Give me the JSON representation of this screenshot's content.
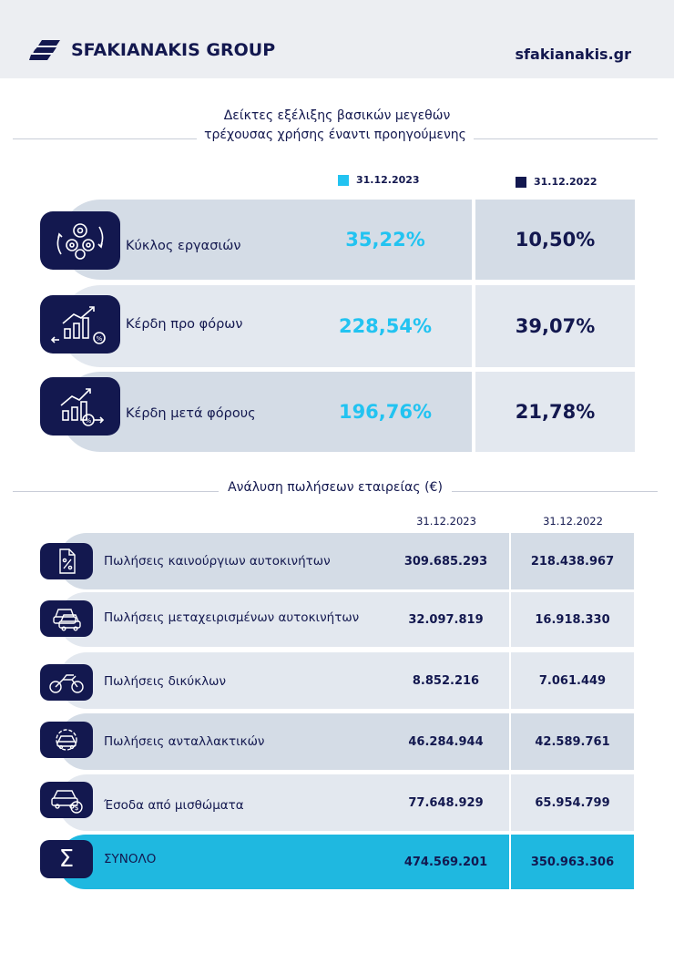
{
  "header": {
    "brand": "SFAKIANAKIS GROUP",
    "website": "sfakianakis.gr"
  },
  "colors": {
    "accent_2023": "#22c3f1",
    "navy_2022": "#13184f",
    "total_row": "#1fb8e0"
  },
  "section1": {
    "title_line1": "Δείκτες εξέλιξης βασικών μεγεθών",
    "title_line2": "τρέχουσας χρήσης έναντι προηγούμενης",
    "legend": {
      "current": "31.12.2023",
      "previous": "31.12.2022"
    },
    "rows": [
      {
        "label": "Κύκλος εργασιών",
        "icon": "gears-cycle-icon",
        "current": "35,22%",
        "previous": "10,50%"
      },
      {
        "label": "Κέρδη προ φόρων",
        "icon": "growth-chart-icon",
        "current": "228,54%",
        "previous": "39,07%"
      },
      {
        "label": "Κέρδη μετά φόρους",
        "icon": "growth-chart-percent-icon",
        "current": "196,76%",
        "previous": "21,78%"
      }
    ]
  },
  "section2": {
    "title": "Ανάλυση πωλήσεων εταιρείας (€)",
    "columns": {
      "current": "31.12.2023",
      "previous": "31.12.2022"
    },
    "rows": [
      {
        "label": "Πωλήσεις καινούργιων αυτοκινήτων",
        "icon": "document-percent-icon",
        "current": "309.685.293",
        "previous": "218.438.967"
      },
      {
        "label": "Πωλήσεις μεταχειρισμένων αυτοκινήτων",
        "icon": "two-cars-icon",
        "current": "32.097.819",
        "previous": "16.918.330"
      },
      {
        "label": "Πωλήσεις δικύκλων",
        "icon": "motorcycle-icon",
        "current": "8.852.216",
        "previous": "7.061.449"
      },
      {
        "label": "Πωλήσεις ανταλλακτικών",
        "icon": "car-parts-gear-icon",
        "current": "46.284.944",
        "previous": "42.589.761"
      },
      {
        "label": "Έσοδα από μισθώματα",
        "icon": "car-rental-coin-icon",
        "current": "77.648.929",
        "previous": "65.954.799"
      }
    ],
    "total": {
      "label": "ΣΥΝΟΛΟ",
      "icon": "sigma-icon",
      "symbol": "Σ",
      "current": "474.569.201",
      "previous": "350.963.306"
    }
  }
}
